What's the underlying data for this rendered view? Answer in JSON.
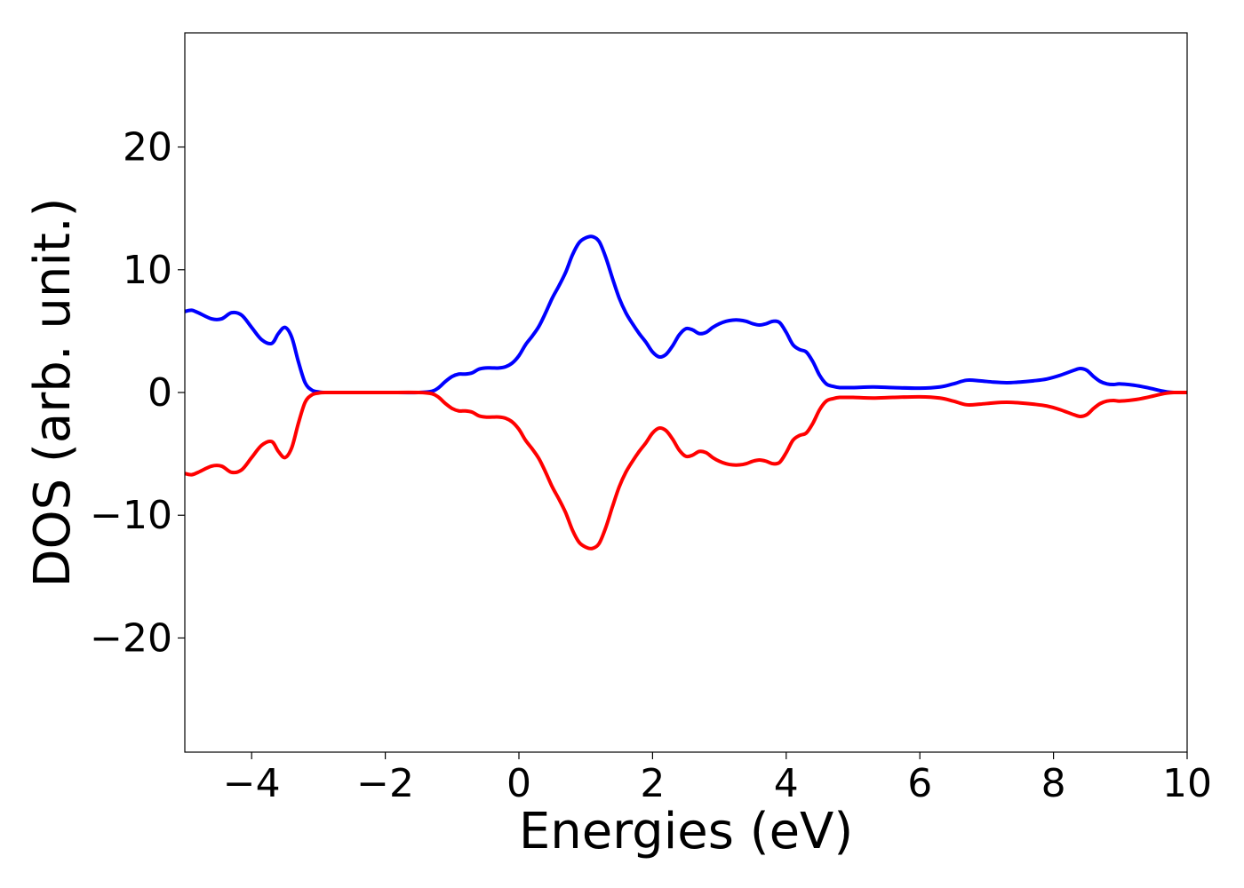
{
  "chart_data": {
    "type": "line",
    "title": "",
    "xlabel": "Energies (eV)",
    "ylabel": "DOS (arb. unit.)",
    "xlim": [
      -5,
      10
    ],
    "ylim": [
      -29.3,
      29.3
    ],
    "xticks": [
      -4,
      -2,
      0,
      2,
      4,
      6,
      8,
      10
    ],
    "xtick_labels": [
      "−4",
      "−2",
      "0",
      "2",
      "4",
      "6",
      "8",
      "10"
    ],
    "yticks": [
      -20,
      -10,
      0,
      10,
      20
    ],
    "ytick_labels": [
      "−20",
      "−10",
      "0",
      "10",
      "20"
    ],
    "grid": false,
    "legend": "none",
    "series": [
      {
        "color": "#0000ff",
        "x": [
          -5.0,
          -4.9,
          -4.8,
          -4.6,
          -4.45,
          -4.3,
          -4.15,
          -4.0,
          -3.85,
          -3.7,
          -3.6,
          -3.5,
          -3.4,
          -3.3,
          -3.2,
          -3.1,
          -3.0,
          -2.9,
          -2.5,
          -2.0,
          -1.5,
          -1.3,
          -1.2,
          -1.1,
          -1.0,
          -0.9,
          -0.8,
          -0.7,
          -0.6,
          -0.5,
          -0.4,
          -0.3,
          -0.2,
          -0.1,
          0.0,
          0.1,
          0.2,
          0.3,
          0.4,
          0.5,
          0.6,
          0.7,
          0.8,
          0.9,
          1.0,
          1.1,
          1.2,
          1.3,
          1.4,
          1.5,
          1.6,
          1.7,
          1.8,
          1.9,
          2.0,
          2.1,
          2.2,
          2.3,
          2.4,
          2.5,
          2.6,
          2.7,
          2.8,
          2.9,
          3.0,
          3.1,
          3.2,
          3.3,
          3.4,
          3.5,
          3.6,
          3.7,
          3.8,
          3.9,
          4.0,
          4.1,
          4.2,
          4.3,
          4.4,
          4.5,
          4.6,
          4.7,
          4.8,
          4.9,
          5.0,
          5.3,
          5.6,
          6.0,
          6.3,
          6.5,
          6.7,
          6.9,
          7.1,
          7.3,
          7.5,
          7.7,
          7.9,
          8.1,
          8.3,
          8.4,
          8.5,
          8.6,
          8.7,
          8.8,
          8.9,
          9.0,
          9.2,
          9.4,
          9.6,
          9.7,
          9.8,
          9.9,
          10.0
        ],
        "y": [
          6.6,
          6.7,
          6.5,
          6.0,
          6.0,
          6.5,
          6.3,
          5.3,
          4.3,
          4.0,
          4.8,
          5.3,
          4.5,
          2.5,
          0.8,
          0.2,
          0.05,
          0.0,
          0.0,
          0.0,
          0.0,
          0.1,
          0.4,
          0.9,
          1.3,
          1.5,
          1.5,
          1.6,
          1.9,
          2.0,
          2.0,
          2.0,
          2.1,
          2.4,
          3.0,
          3.9,
          4.6,
          5.4,
          6.5,
          7.7,
          8.7,
          9.8,
          11.2,
          12.2,
          12.6,
          12.7,
          12.3,
          11.0,
          9.3,
          7.7,
          6.5,
          5.6,
          4.8,
          4.1,
          3.3,
          2.9,
          3.1,
          3.8,
          4.7,
          5.2,
          5.1,
          4.8,
          4.9,
          5.3,
          5.6,
          5.8,
          5.9,
          5.9,
          5.8,
          5.6,
          5.5,
          5.6,
          5.8,
          5.7,
          4.9,
          3.9,
          3.5,
          3.3,
          2.5,
          1.4,
          0.7,
          0.5,
          0.4,
          0.4,
          0.4,
          0.45,
          0.4,
          0.35,
          0.45,
          0.7,
          1.0,
          0.95,
          0.85,
          0.8,
          0.85,
          0.95,
          1.1,
          1.4,
          1.8,
          1.95,
          1.8,
          1.3,
          0.9,
          0.7,
          0.65,
          0.7,
          0.6,
          0.4,
          0.15,
          0.05,
          0.0,
          0.0,
          0.0
        ]
      },
      {
        "color": "#ff0000",
        "x": [
          -5.0,
          -4.9,
          -4.8,
          -4.6,
          -4.45,
          -4.3,
          -4.15,
          -4.0,
          -3.85,
          -3.7,
          -3.6,
          -3.5,
          -3.4,
          -3.3,
          -3.2,
          -3.1,
          -3.0,
          -2.9,
          -2.5,
          -2.0,
          -1.5,
          -1.3,
          -1.2,
          -1.1,
          -1.0,
          -0.9,
          -0.8,
          -0.7,
          -0.6,
          -0.5,
          -0.4,
          -0.3,
          -0.2,
          -0.1,
          0.0,
          0.1,
          0.2,
          0.3,
          0.4,
          0.5,
          0.6,
          0.7,
          0.8,
          0.9,
          1.0,
          1.1,
          1.2,
          1.3,
          1.4,
          1.5,
          1.6,
          1.7,
          1.8,
          1.9,
          2.0,
          2.1,
          2.2,
          2.3,
          2.4,
          2.5,
          2.6,
          2.7,
          2.8,
          2.9,
          3.0,
          3.1,
          3.2,
          3.3,
          3.4,
          3.5,
          3.6,
          3.7,
          3.8,
          3.9,
          4.0,
          4.1,
          4.2,
          4.3,
          4.4,
          4.5,
          4.6,
          4.7,
          4.8,
          4.9,
          5.0,
          5.3,
          5.6,
          6.0,
          6.3,
          6.5,
          6.7,
          6.9,
          7.1,
          7.3,
          7.5,
          7.7,
          7.9,
          8.1,
          8.3,
          8.4,
          8.5,
          8.6,
          8.7,
          8.8,
          8.9,
          9.0,
          9.2,
          9.4,
          9.6,
          9.7,
          9.8,
          9.9,
          10.0
        ],
        "y": [
          -6.6,
          -6.7,
          -6.5,
          -6.0,
          -6.0,
          -6.5,
          -6.3,
          -5.3,
          -4.3,
          -4.0,
          -4.8,
          -5.3,
          -4.5,
          -2.5,
          -0.8,
          -0.2,
          -0.05,
          0.0,
          0.0,
          0.0,
          0.0,
          -0.1,
          -0.4,
          -0.9,
          -1.3,
          -1.5,
          -1.5,
          -1.6,
          -1.9,
          -2.0,
          -2.0,
          -2.0,
          -2.1,
          -2.4,
          -3.0,
          -3.9,
          -4.6,
          -5.4,
          -6.5,
          -7.7,
          -8.7,
          -9.8,
          -11.2,
          -12.2,
          -12.6,
          -12.7,
          -12.3,
          -11.0,
          -9.3,
          -7.7,
          -6.5,
          -5.6,
          -4.8,
          -4.1,
          -3.3,
          -2.9,
          -3.1,
          -3.8,
          -4.7,
          -5.2,
          -5.1,
          -4.8,
          -4.9,
          -5.3,
          -5.6,
          -5.8,
          -5.9,
          -5.9,
          -5.8,
          -5.6,
          -5.5,
          -5.6,
          -5.8,
          -5.7,
          -4.9,
          -3.9,
          -3.5,
          -3.3,
          -2.5,
          -1.4,
          -0.7,
          -0.5,
          -0.4,
          -0.4,
          -0.4,
          -0.45,
          -0.4,
          -0.35,
          -0.45,
          -0.7,
          -1.0,
          -0.95,
          -0.85,
          -0.8,
          -0.85,
          -0.95,
          -1.1,
          -1.4,
          -1.8,
          -1.95,
          -1.8,
          -1.3,
          -0.9,
          -0.7,
          -0.65,
          -0.7,
          -0.6,
          -0.4,
          -0.15,
          -0.05,
          0.0,
          0.0,
          0.0
        ]
      }
    ]
  }
}
